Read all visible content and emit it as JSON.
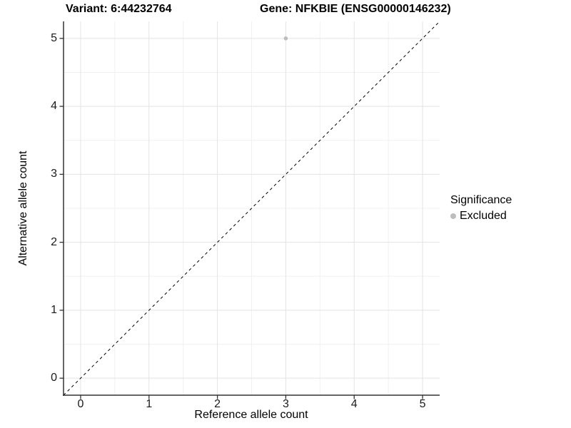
{
  "chart_data": {
    "type": "scatter",
    "title_left": "Variant: 6:44232764",
    "title_right": "Gene: NFKBIE (ENSG00000146232)",
    "xlabel": "Reference allele count",
    "ylabel": "Alternative allele count",
    "xlim": [
      -0.25,
      5.25
    ],
    "ylim": [
      -0.25,
      5.25
    ],
    "x_ticks": [
      0,
      1,
      2,
      3,
      4,
      5
    ],
    "y_ticks": [
      0,
      1,
      2,
      3,
      4,
      5
    ],
    "x_minor_ticks": [
      0.5,
      1.5,
      2.5,
      3.5,
      4.5
    ],
    "y_minor_ticks": [
      0.5,
      1.5,
      2.5,
      3.5,
      4.5
    ],
    "grid": true,
    "series": [
      {
        "name": "Excluded",
        "marker": "circle",
        "color": "#bdbdbd",
        "points": [
          [
            3,
            5
          ]
        ]
      }
    ],
    "reference_line": {
      "type": "identity",
      "style": "dashed",
      "color": "#000000"
    },
    "legend": {
      "position": "right",
      "title": "Significance",
      "items": [
        {
          "label": "Excluded",
          "marker": "circle",
          "color": "#bdbdbd"
        }
      ]
    },
    "colors": {
      "background": "#ffffff",
      "panel_background": "#ffffff",
      "grid_major": "#e3e3e3",
      "grid_minor": "#f1f1f1",
      "axis_line": "#333333",
      "tick_mark": "#333333",
      "text": "#000000"
    }
  }
}
